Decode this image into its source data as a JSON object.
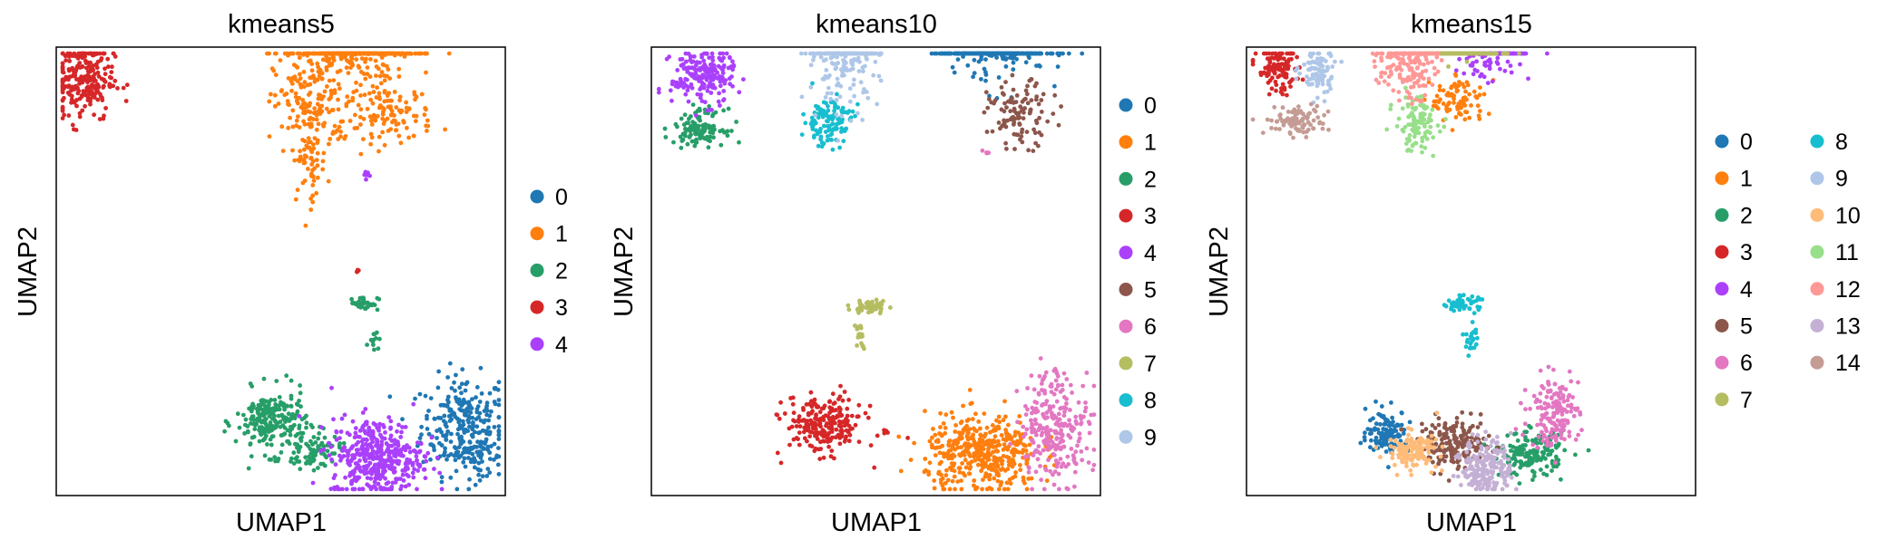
{
  "palette": [
    "#1f77b4",
    "#ff7f0e",
    "#279e68",
    "#d62728",
    "#aa40fc",
    "#8c564b",
    "#e377c2",
    "#b5bd61",
    "#17becf",
    "#aec7e8",
    "#ffbb78",
    "#98df8a",
    "#ff9896",
    "#c5b0d5",
    "#c49c94"
  ],
  "chart_data": [
    {
      "type": "scatter",
      "title": "kmeans5",
      "xlabel": "UMAP1",
      "ylabel": "UMAP2",
      "ticks": "none",
      "grid": false,
      "legend_placement": "right",
      "legend": [
        "0",
        "1",
        "2",
        "3",
        "4"
      ],
      "clusters": [
        {
          "name": "0",
          "color": "#1f77b4",
          "regions": [
            [
              12.7,
              2.2,
              1.2,
              1.4,
              260
            ],
            [
              13.2,
              1.2,
              0.6,
              0.6,
              40
            ]
          ]
        },
        {
          "name": "1",
          "color": "#ff7f0e",
          "regions": [
            [
              9.3,
              14.5,
              1.7,
              1.4,
              500
            ],
            [
              8.0,
              12.2,
              1.1,
              1.4,
              150
            ],
            [
              7.9,
              10.5,
              0.5,
              1.2,
              60
            ],
            [
              10.4,
              11.9,
              1.2,
              0.8,
              120
            ]
          ]
        },
        {
          "name": "2",
          "color": "#279e68",
          "regions": [
            [
              6.7,
              2.3,
              1.0,
              0.9,
              220
            ],
            [
              8.0,
              1.4,
              0.8,
              0.5,
              80
            ],
            [
              9.6,
              6.0,
              0.4,
              0.2,
              40
            ],
            [
              9.9,
              5.0,
              0.15,
              0.35,
              12
            ]
          ]
        },
        {
          "name": "3",
          "color": "#d62728",
          "regions": [
            [
              0.8,
              13.0,
              0.9,
              1.2,
              250
            ],
            [
              9.4,
              7.0,
              0.07,
              0.07,
              4
            ]
          ]
        },
        {
          "name": "4",
          "color": "#aa40fc",
          "regions": [
            [
              10.0,
              1.2,
              1.3,
              1.1,
              400
            ],
            [
              9.7,
              9.9,
              0.1,
              0.2,
              6
            ]
          ]
        }
      ]
    },
    {
      "type": "scatter",
      "title": "kmeans10",
      "xlabel": "UMAP1",
      "ylabel": "UMAP2",
      "ticks": "none",
      "grid": false,
      "legend_placement": "right",
      "legend": [
        "0",
        "1",
        "2",
        "3",
        "4",
        "5",
        "6",
        "7",
        "8",
        "9"
      ],
      "clusters": [
        {
          "name": "0",
          "color": "#1f77b4",
          "regions": [
            [
              10.7,
              14.6,
              1.5,
              1.3,
              420
            ]
          ]
        },
        {
          "name": "1",
          "color": "#ff7f0e",
          "regions": [
            [
              10.3,
              1.3,
              1.6,
              1.1,
              420
            ]
          ]
        },
        {
          "name": "2",
          "color": "#279e68",
          "regions": [
            [
              1.5,
              11.5,
              0.7,
              0.5,
              120
            ]
          ]
        },
        {
          "name": "3",
          "color": "#d62728",
          "regions": [
            [
              5.4,
              2.2,
              1.1,
              0.8,
              230
            ],
            [
              7.3,
              2.0,
              0.1,
              0.1,
              6
            ]
          ]
        },
        {
          "name": "4",
          "color": "#aa40fc",
          "regions": [
            [
              1.6,
              13.1,
              0.9,
              0.8,
              200
            ]
          ]
        },
        {
          "name": "5",
          "color": "#8c564b",
          "regions": [
            [
              11.5,
              11.9,
              0.9,
              0.9,
              110
            ]
          ]
        },
        {
          "name": "6",
          "color": "#e377c2",
          "regions": [
            [
              12.6,
              2.2,
              1.0,
              1.6,
              260
            ],
            [
              10.4,
              10.7,
              0.1,
              0.1,
              4
            ]
          ]
        },
        {
          "name": "7",
          "color": "#b5bd61",
          "regions": [
            [
              6.8,
              5.9,
              0.5,
              0.2,
              50
            ],
            [
              6.5,
              5.0,
              0.15,
              0.35,
              18
            ]
          ]
        },
        {
          "name": "8",
          "color": "#17becf",
          "regions": [
            [
              5.5,
              11.7,
              0.7,
              0.7,
              120
            ]
          ]
        },
        {
          "name": "9",
          "color": "#aec7e8",
          "regions": [
            [
              6.0,
              14.0,
              1.0,
              1.6,
              260
            ]
          ]
        }
      ]
    },
    {
      "type": "scatter",
      "title": "kmeans15",
      "xlabel": "UMAP1",
      "ylabel": "UMAP2",
      "ticks": "none",
      "grid": false,
      "legend_placement": "right",
      "legend": [
        "0",
        "1",
        "2",
        "3",
        "4",
        "5",
        "6",
        "7",
        "8",
        "9",
        "10",
        "11",
        "12",
        "13",
        "14"
      ],
      "clusters": [
        {
          "name": "0",
          "color": "#1f77b4",
          "regions": [
            [
              4.4,
              2.0,
              0.6,
              0.6,
              120
            ]
          ]
        },
        {
          "name": "1",
          "color": "#ff7f0e",
          "regions": [
            [
              6.6,
              12.3,
              0.8,
              0.7,
              90
            ]
          ]
        },
        {
          "name": "2",
          "color": "#279e68",
          "regions": [
            [
              8.9,
              1.3,
              0.9,
              0.6,
              160
            ]
          ]
        },
        {
          "name": "3",
          "color": "#d62728",
          "regions": [
            [
              1.0,
              13.3,
              0.6,
              0.7,
              110
            ]
          ]
        },
        {
          "name": "4",
          "color": "#aa40fc",
          "regions": [
            [
              7.6,
              14.5,
              0.9,
              1.3,
              230
            ]
          ]
        },
        {
          "name": "5",
          "color": "#8c564b",
          "regions": [
            [
              6.5,
              1.6,
              1.0,
              0.7,
              180
            ]
          ]
        },
        {
          "name": "6",
          "color": "#e377c2",
          "regions": [
            [
              9.6,
              2.6,
              0.7,
              1.0,
              160
            ]
          ]
        },
        {
          "name": "7",
          "color": "#b5bd61",
          "regions": [
            [
              6.5,
              15.2,
              1.1,
              1.2,
              260
            ]
          ]
        },
        {
          "name": "8",
          "color": "#17becf",
          "regions": [
            [
              6.7,
              6.0,
              0.5,
              0.2,
              60
            ],
            [
              7.0,
              4.9,
              0.2,
              0.4,
              25
            ]
          ]
        },
        {
          "name": "9",
          "color": "#aec7e8",
          "regions": [
            [
              2.2,
              13.2,
              0.5,
              0.7,
              90
            ]
          ]
        },
        {
          "name": "10",
          "color": "#ffbb78",
          "regions": [
            [
              5.2,
              1.4,
              0.7,
              0.5,
              130
            ]
          ]
        },
        {
          "name": "11",
          "color": "#98df8a",
          "regions": [
            [
              5.3,
              11.6,
              0.6,
              0.8,
              110
            ]
          ]
        },
        {
          "name": "12",
          "color": "#ff9896",
          "regions": [
            [
              5.0,
              13.6,
              0.8,
              1.1,
              180
            ]
          ]
        },
        {
          "name": "13",
          "color": "#c5b0d5",
          "regions": [
            [
              7.5,
              0.9,
              0.7,
              0.8,
              200
            ]
          ]
        },
        {
          "name": "14",
          "color": "#c49c94",
          "regions": [
            [
              1.6,
              11.7,
              0.9,
              0.4,
              100
            ]
          ]
        }
      ]
    }
  ]
}
